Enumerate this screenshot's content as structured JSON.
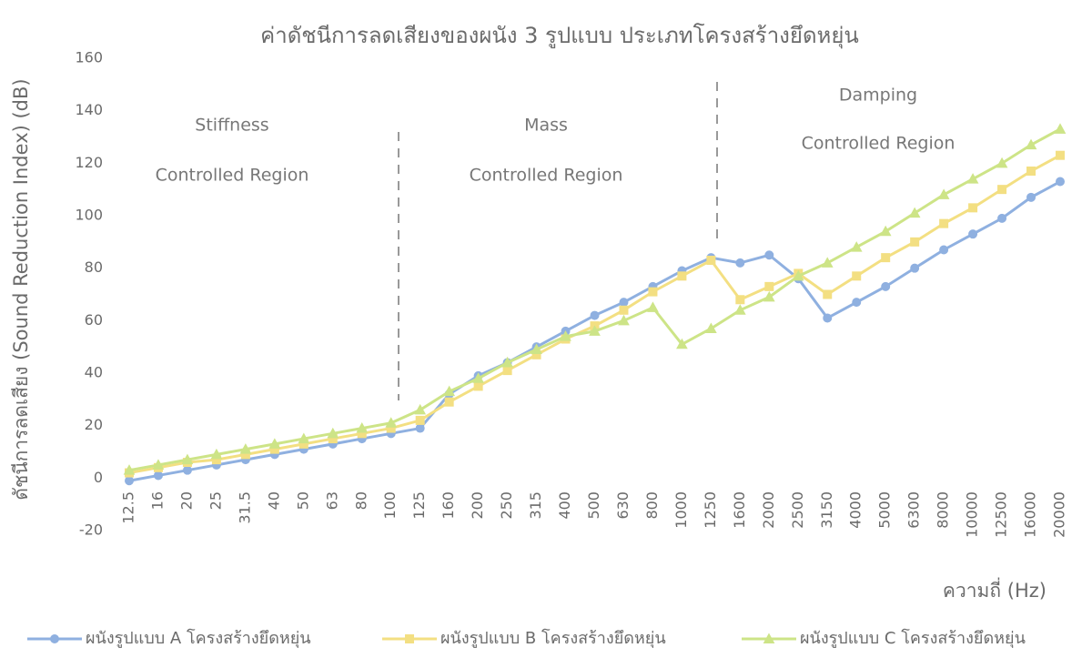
{
  "chart_data": {
    "type": "line",
    "title": "ค่าดัชนีการลดเสียงของผนัง 3 รูปแบบ ประเภทโครงสร้างยึดหยุ่น",
    "x_label": "ความถี่ (Hz)",
    "y_label": "ดัชนีการลดเสียง (Sound Reduction Index) (dB)",
    "categories": [
      "12.5",
      "16",
      "20",
      "25",
      "31.5",
      "40",
      "50",
      "63",
      "80",
      "100",
      "125",
      "160",
      "200",
      "250",
      "315",
      "400",
      "500",
      "630",
      "800",
      "1000",
      "1250",
      "1600",
      "2000",
      "2500",
      "3150",
      "4000",
      "5000",
      "6300",
      "8000",
      "10000",
      "12500",
      "16000",
      "20000"
    ],
    "series": [
      {
        "name": "ผนังรูปแบบ A โครงสร้างยึดหยุ่น",
        "color": "#8fb0e0",
        "marker": "circle",
        "values": [
          -1,
          1,
          3,
          5,
          7,
          9,
          11,
          13,
          15,
          17,
          19,
          32,
          39,
          44,
          50,
          56,
          62,
          67,
          73,
          79,
          84,
          82,
          85,
          76,
          61,
          67,
          73,
          80,
          87,
          93,
          99,
          107,
          113
        ]
      },
      {
        "name": "ผนังรูปแบบ B โครงสร้างยึดหยุ่น",
        "color": "#f3df82",
        "marker": "square",
        "values": [
          2,
          4,
          6,
          7,
          9,
          11,
          13,
          15,
          17,
          19,
          22,
          29,
          35,
          41,
          47,
          53,
          58,
          64,
          71,
          77,
          83,
          68,
          73,
          78,
          70,
          77,
          84,
          90,
          97,
          103,
          110,
          117,
          123
        ]
      },
      {
        "name": "ผนังรูปแบบ C โครงสร้างยึดหยุ่น",
        "color": "#cde487",
        "marker": "triangle",
        "values": [
          3,
          5,
          7,
          9,
          11,
          13,
          15,
          17,
          19,
          21,
          26,
          33,
          38,
          44,
          49,
          54,
          56,
          60,
          65,
          51,
          57,
          64,
          69,
          77,
          82,
          88,
          94,
          101,
          108,
          114,
          120,
          127,
          133
        ]
      }
    ],
    "annotations": [
      [
        "Stiffness",
        "Controlled Region"
      ],
      [
        "Mass",
        "Controlled Region"
      ],
      [
        "Damping",
        "Controlled Region"
      ]
    ],
    "ylim": [
      -20,
      160
    ],
    "yticks": [
      -20,
      0,
      20,
      40,
      60,
      80,
      100,
      120,
      140,
      160
    ],
    "grid": false,
    "legend": "bottom"
  }
}
